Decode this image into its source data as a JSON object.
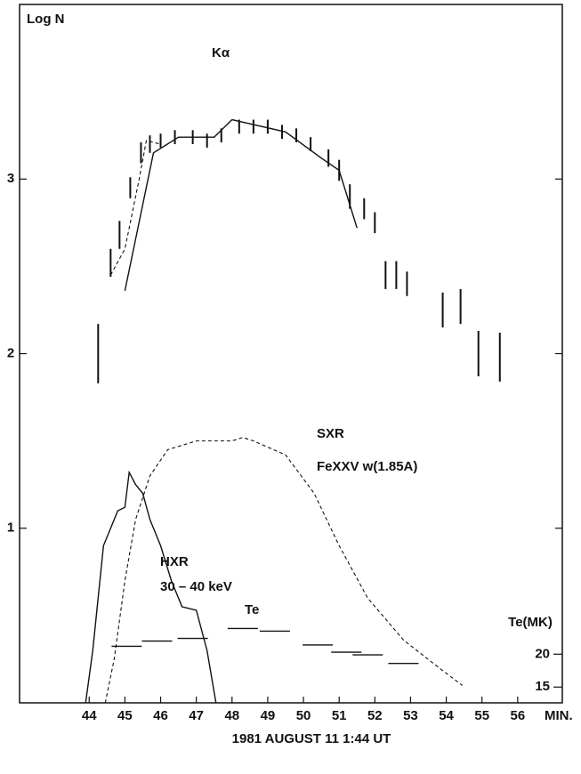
{
  "chart_data": {
    "type": "line",
    "y_label": "Log N",
    "y2_label": "Te(MK)",
    "x_unit": "MIN.",
    "x_label": "1981 AUGUST 11 1:44 UT",
    "xlim": [
      42.05,
      57.25
    ],
    "ylim": [
      0,
      4
    ],
    "y2lim": [
      12.6,
      118.8
    ],
    "xticks": [
      44,
      45,
      46,
      47,
      48,
      49,
      50,
      51,
      52,
      53,
      54,
      55,
      56
    ],
    "yticks": [
      1,
      2,
      3
    ],
    "y2ticks": [
      15,
      20
    ],
    "annotations": [
      "FeXXV w(1.85A)",
      "30 – 40 keV"
    ],
    "color": "#111111",
    "series": [
      {
        "name": "Kα",
        "type": "errorbar",
        "x": [
          44.25,
          44.6,
          44.85,
          45.15,
          45.45,
          45.7,
          46.0,
          46.4,
          46.9,
          47.3,
          47.7,
          48.2,
          48.6,
          49.0,
          49.4,
          49.8,
          50.2,
          50.7,
          51.0,
          51.3,
          51.7,
          52.0,
          52.3,
          52.6,
          52.9,
          53.9,
          54.4,
          54.9,
          55.5
        ],
        "values": [
          2.0,
          2.52,
          2.68,
          2.95,
          3.15,
          3.2,
          3.22,
          3.24,
          3.24,
          3.22,
          3.25,
          3.3,
          3.3,
          3.3,
          3.27,
          3.25,
          3.2,
          3.12,
          3.05,
          2.9,
          2.83,
          2.75,
          2.45,
          2.45,
          2.4,
          2.25,
          2.27,
          2.0,
          1.98
        ],
        "errors": [
          0.17,
          0.08,
          0.08,
          0.06,
          0.06,
          0.05,
          0.04,
          0.04,
          0.04,
          0.04,
          0.04,
          0.04,
          0.04,
          0.04,
          0.04,
          0.04,
          0.04,
          0.05,
          0.06,
          0.07,
          0.06,
          0.06,
          0.08,
          0.08,
          0.07,
          0.1,
          0.1,
          0.13,
          0.14
        ]
      },
      {
        "type": "solid",
        "x": [
          45.0,
          45.8,
          46.5,
          47.5,
          48.0,
          49.5,
          50.5,
          51.0,
          51.5
        ],
        "values": [
          2.36,
          3.15,
          3.24,
          3.24,
          3.34,
          3.27,
          3.12,
          3.05,
          2.72
        ]
      },
      {
        "type": "dashed",
        "x": [
          44.6,
          45.0,
          45.4,
          45.6,
          46.0
        ],
        "values": [
          2.45,
          2.6,
          3.0,
          3.22,
          3.2
        ]
      },
      {
        "name": "SXR",
        "type": "dashed",
        "x": [
          44.45,
          44.7,
          45.0,
          45.3,
          45.7,
          46.2,
          47.0,
          48.0,
          48.3,
          48.6,
          49.5,
          50.3,
          51.0,
          51.8,
          52.8,
          53.8,
          54.45
        ],
        "values": [
          0.0,
          0.25,
          0.7,
          1.05,
          1.3,
          1.45,
          1.5,
          1.5,
          1.52,
          1.5,
          1.42,
          1.2,
          0.9,
          0.6,
          0.36,
          0.2,
          0.1
        ]
      },
      {
        "name": "HXR",
        "type": "solid",
        "x": [
          43.9,
          44.1,
          44.25,
          44.4,
          44.6,
          44.8,
          45.0,
          45.12,
          45.3,
          45.5,
          45.7,
          46.0,
          46.3,
          46.6,
          47.0,
          47.3,
          47.55
        ],
        "values": [
          0.0,
          0.3,
          0.6,
          0.9,
          1.0,
          1.1,
          1.12,
          1.32,
          1.25,
          1.2,
          1.05,
          0.9,
          0.7,
          0.55,
          0.53,
          0.3,
          0.0
        ]
      },
      {
        "name": "Te",
        "type": "segments",
        "axis": "y2",
        "x": [
          45.05,
          45.9,
          46.9,
          48.3,
          49.2,
          50.4,
          51.2,
          51.8,
          52.8
        ],
        "values": [
          21.2,
          22.0,
          22.4,
          23.9,
          23.5,
          21.4,
          20.3,
          19.9,
          18.6
        ]
      }
    ]
  }
}
